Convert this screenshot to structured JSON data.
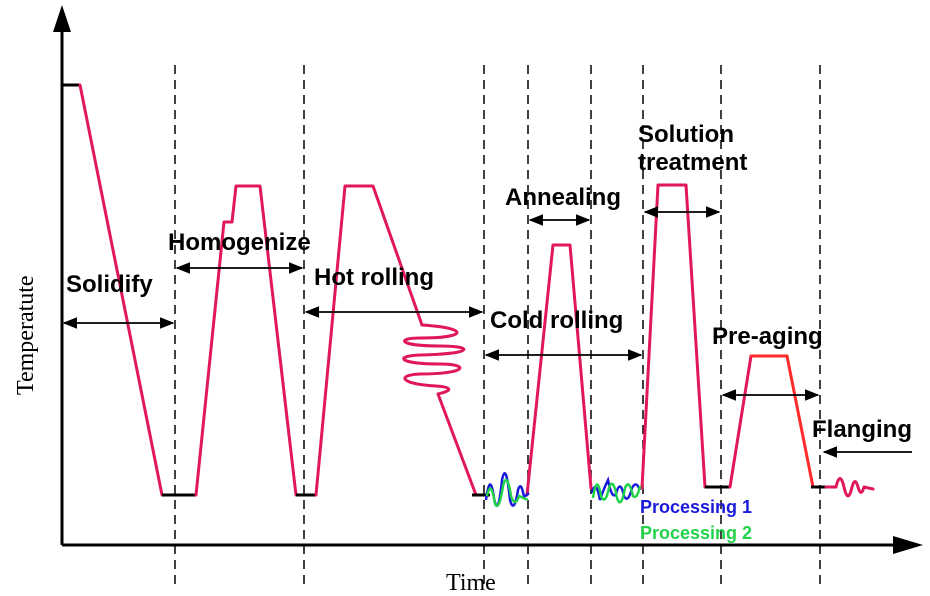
{
  "axes": {
    "x_label": "Time",
    "y_label": "Temperatute"
  },
  "stages": {
    "solidify": "Solidify",
    "homogenize": "Homogenize",
    "hot_rolling": "Hot rolling",
    "annealing": "Annealing",
    "cold_rolling": "Cold rolling",
    "solution_line1": "Solution",
    "solution_line2": "treatment",
    "pre_aging": "Pre-aging",
    "flanging": "Flanging"
  },
  "legend": {
    "processing1": "Processing 1",
    "processing2": "Processing 2"
  },
  "colors": {
    "curve": "#e0175a",
    "pre_aging_cooling": "#ff2a2a",
    "processing1": "#1a1adb",
    "processing2": "#22d24a",
    "axis": "#000000"
  }
}
